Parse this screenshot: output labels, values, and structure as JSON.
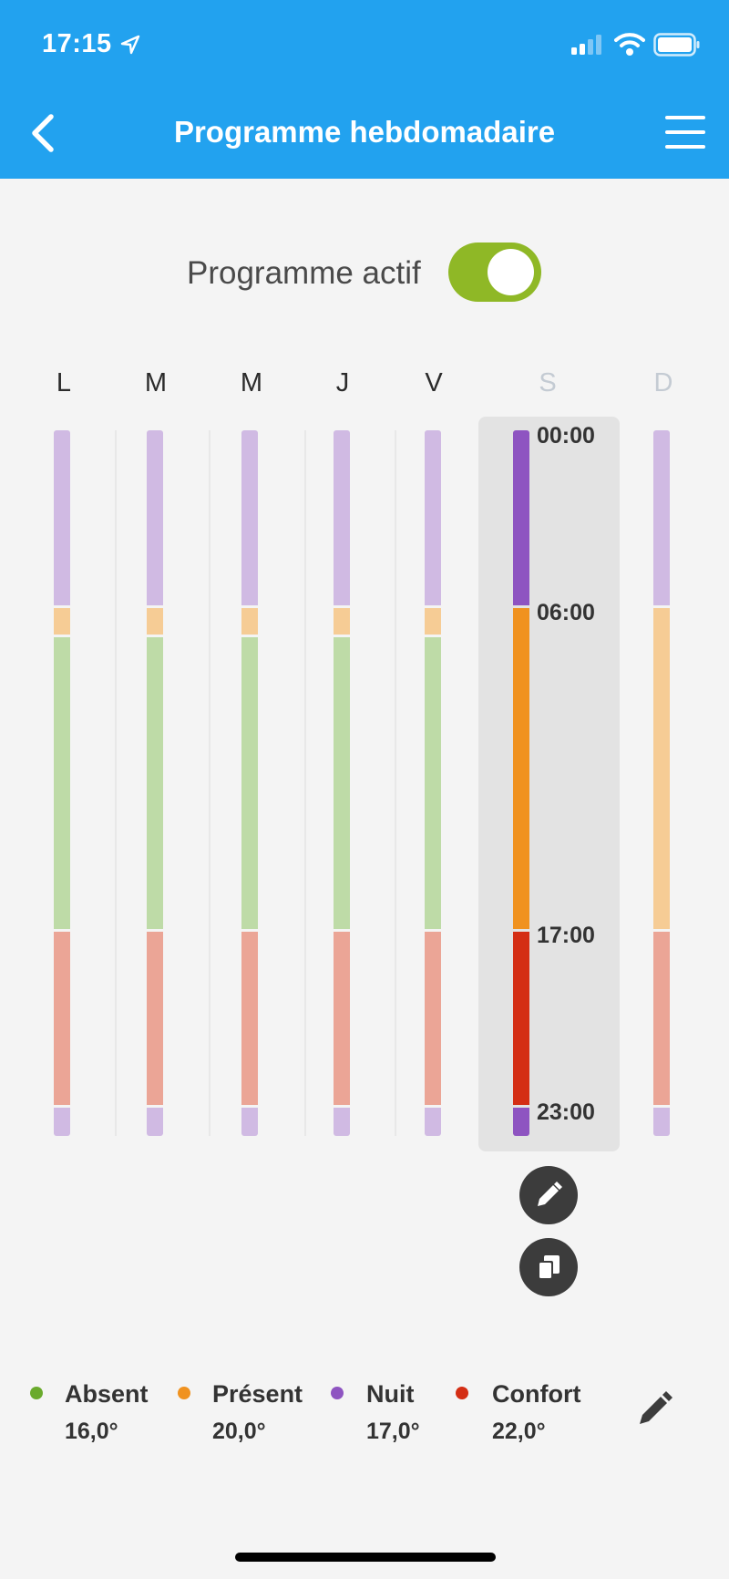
{
  "status": {
    "time": "17:15"
  },
  "header": {
    "title": "Programme hebdomadaire"
  },
  "program": {
    "label": "Programme actif",
    "enabled": true
  },
  "days": [
    {
      "label": "L",
      "selected": false,
      "muted": false
    },
    {
      "label": "M",
      "selected": false,
      "muted": false
    },
    {
      "label": "M",
      "selected": false,
      "muted": false
    },
    {
      "label": "J",
      "selected": false,
      "muted": false
    },
    {
      "label": "V",
      "selected": false,
      "muted": false
    },
    {
      "label": "S",
      "selected": true,
      "muted": true
    },
    {
      "label": "D",
      "selected": false,
      "muted": true
    }
  ],
  "schedules": {
    "weekday": [
      {
        "mode": "nuit",
        "start_hour": 0,
        "end_hour": 6
      },
      {
        "mode": "present",
        "start_hour": 6,
        "end_hour": 7
      },
      {
        "mode": "absent",
        "start_hour": 7,
        "end_hour": 17
      },
      {
        "mode": "confort",
        "start_hour": 17,
        "end_hour": 23
      },
      {
        "mode": "nuit",
        "start_hour": 23,
        "end_hour": 24
      }
    ],
    "weekend": [
      {
        "mode": "nuit",
        "start_hour": 0,
        "end_hour": 6
      },
      {
        "mode": "present",
        "start_hour": 6,
        "end_hour": 17
      },
      {
        "mode": "confort",
        "start_hour": 17,
        "end_hour": 23
      },
      {
        "mode": "nuit",
        "start_hour": 23,
        "end_hour": 24
      }
    ]
  },
  "selected_day_times": [
    "00:00",
    "06:00",
    "17:00",
    "23:00"
  ],
  "legend": [
    {
      "mode": "absent",
      "name": "Absent",
      "temp": "16,0°",
      "color": "#6aaa2c"
    },
    {
      "mode": "present",
      "name": "Présent",
      "temp": "20,0°",
      "color": "#f0921f"
    },
    {
      "mode": "nuit",
      "name": "Nuit",
      "temp": "17,0°",
      "color": "#8e54c1"
    },
    {
      "mode": "confort",
      "name": "Confort",
      "temp": "22,0°",
      "color": "#d42e14"
    }
  ],
  "pale_colors": {
    "absent": "#bedba7",
    "present": "#f6cc95",
    "nuit": "#d0bae3",
    "confort": "#eba596"
  },
  "icons": {
    "back": "chevron-left-icon",
    "menu": "hamburger-menu-icon",
    "edit_day": "pencil-icon",
    "copy_day": "copy-icon",
    "edit_legend": "pencil-icon"
  }
}
